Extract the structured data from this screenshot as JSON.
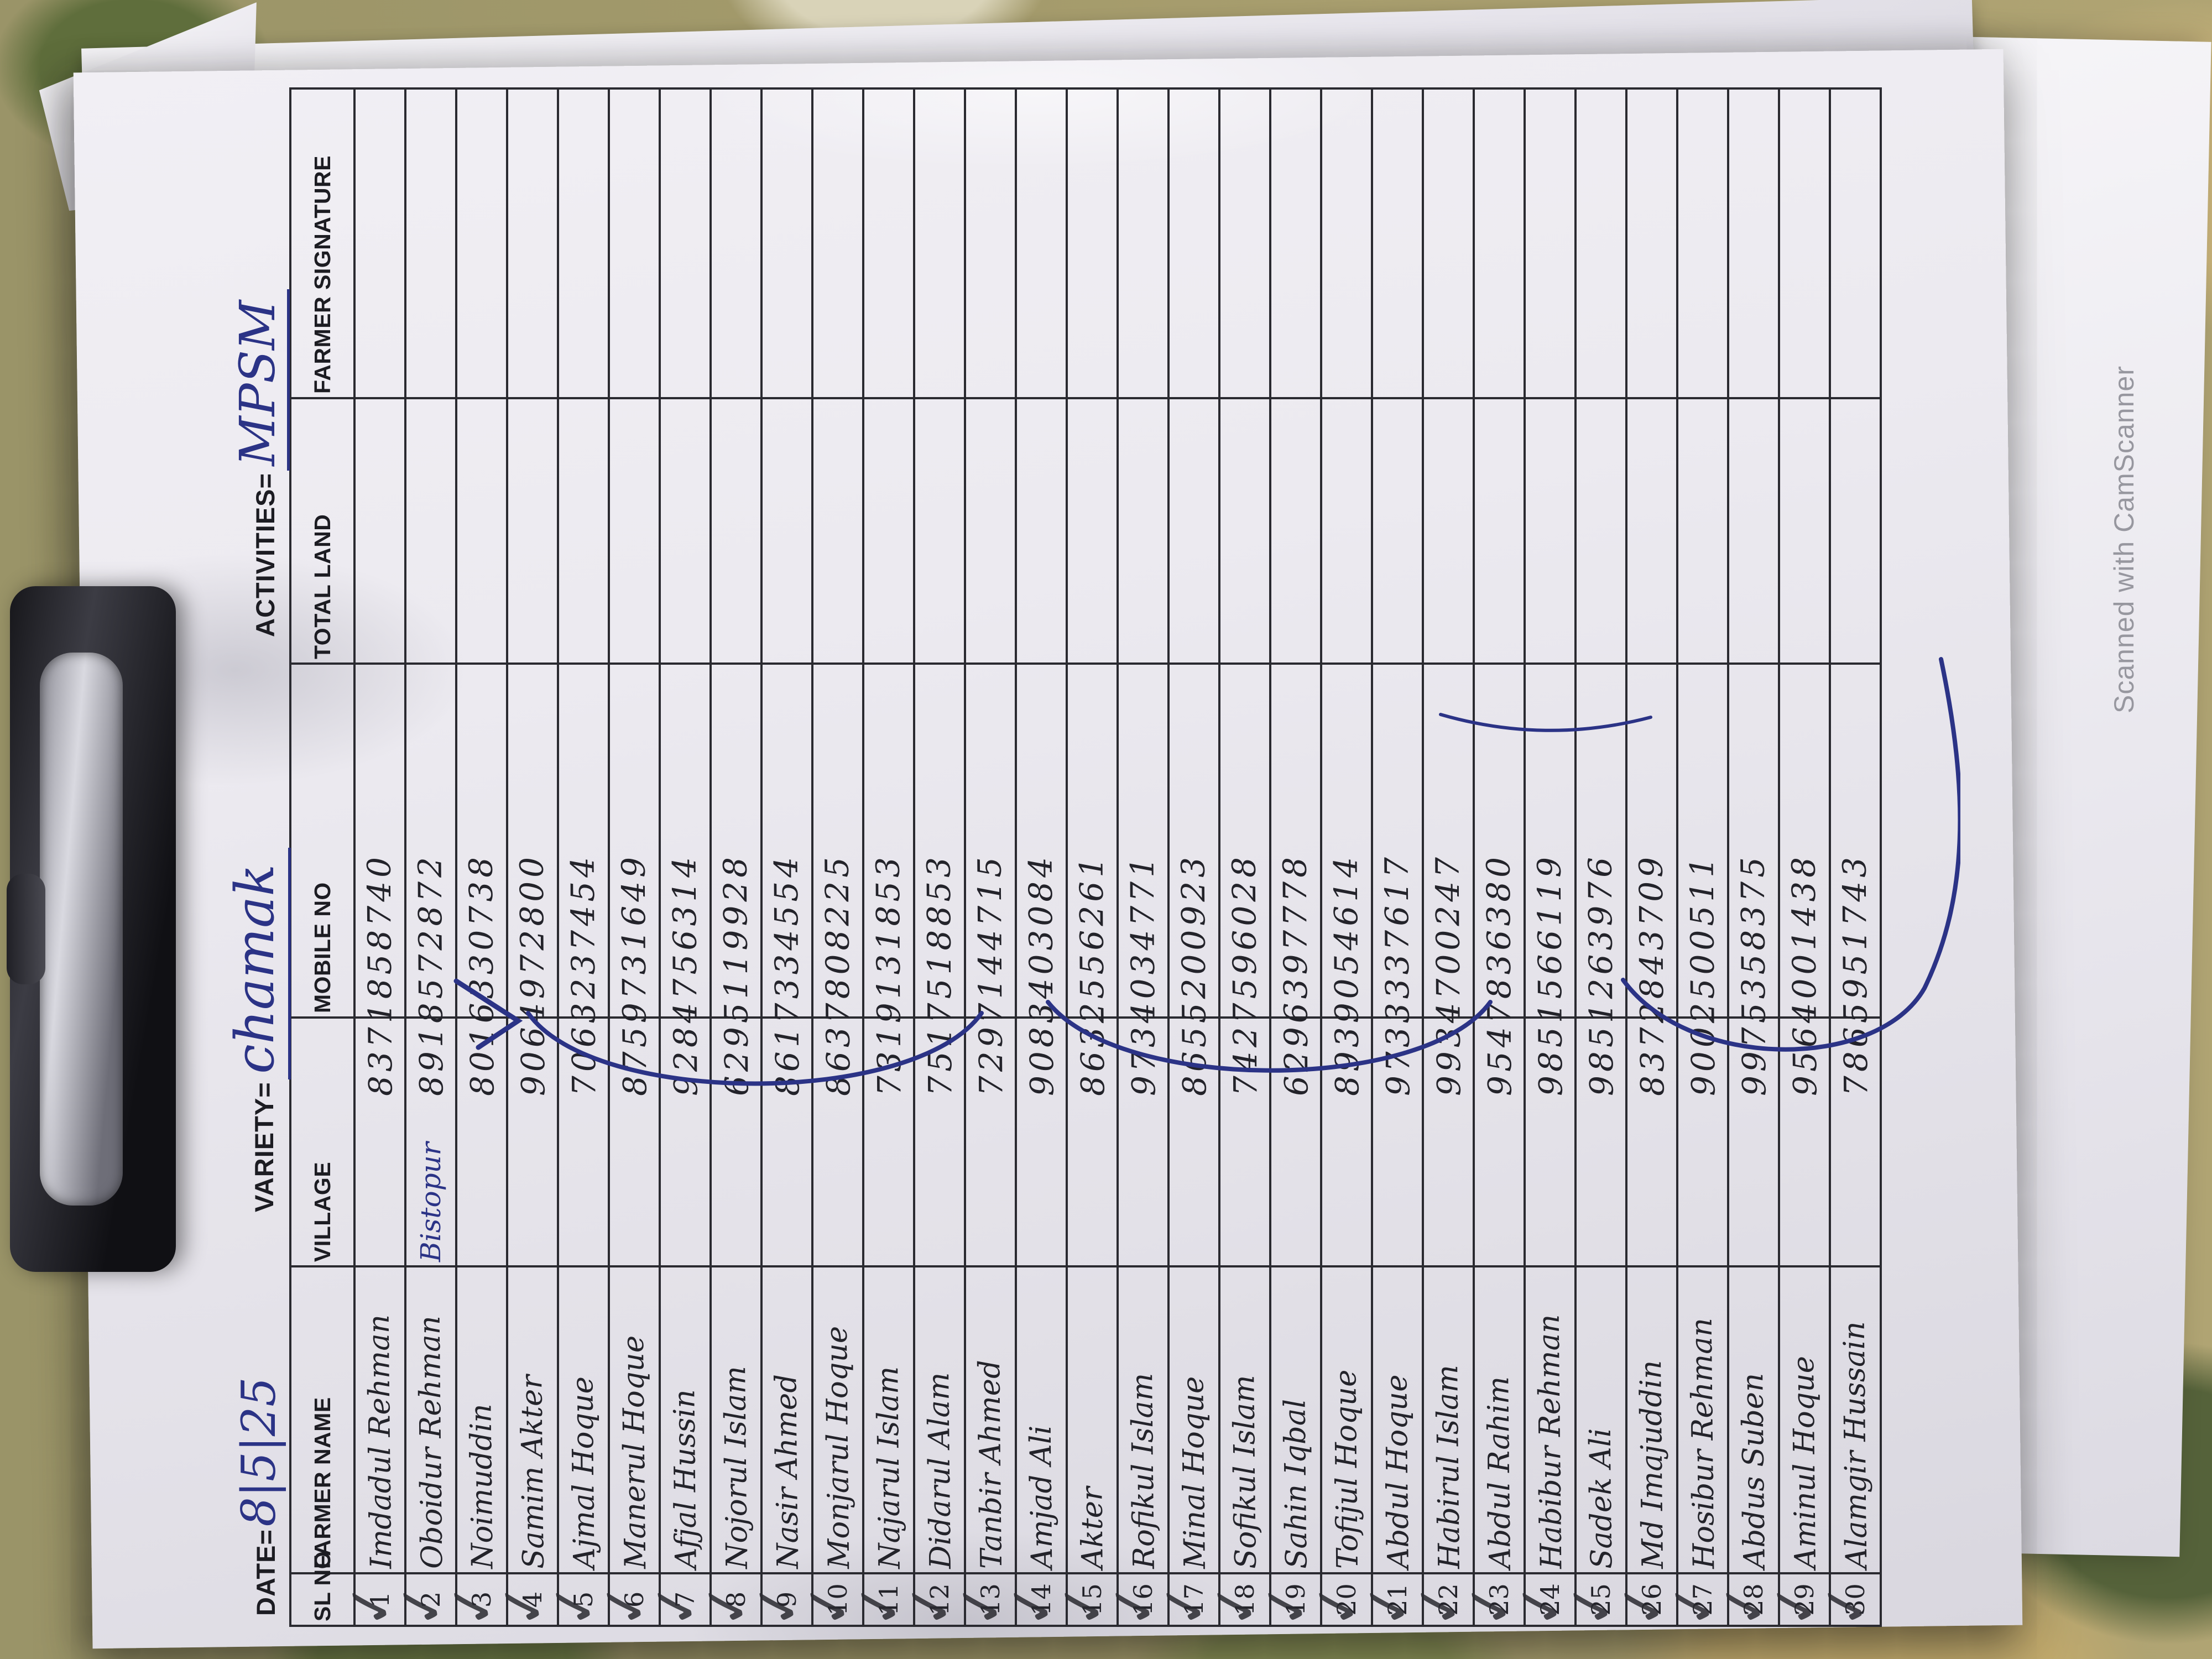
{
  "photo": {
    "watermark": "Scanned with CamScanner"
  },
  "colors": {
    "ink": "#23232a",
    "blue_ink": "#2b3386",
    "paper": "#eceaf0",
    "fabric_olive": "#8a9157"
  },
  "form": {
    "date_label": "DATE=",
    "date_value": "8|5|25",
    "variety_label": "VARIETY=",
    "variety_value": "chamak",
    "activities_label": "ACTIVITIES=",
    "activities_value": "MPSM",
    "columns": [
      "SL NO",
      "FARMER NAME",
      "VILLAGE",
      "MOBILE NO",
      "TOTAL LAND",
      "FARMER SIGNATURE"
    ],
    "rows": [
      {
        "sl": "1",
        "name": "Imdadul Rehman",
        "village": "",
        "mobile": "8371858740",
        "land": "",
        "signature": "",
        "ticked": true
      },
      {
        "sl": "2",
        "name": "Oboidur Rehman",
        "village": "Bistopur",
        "mobile": "8918572872",
        "land": "",
        "signature": "",
        "ticked": true
      },
      {
        "sl": "3",
        "name": "Noimuddin",
        "village": "",
        "mobile": "8016330738",
        "land": "",
        "signature": "",
        "ticked": true
      },
      {
        "sl": "4",
        "name": "Samim Akter",
        "village": "",
        "mobile": "9064972800",
        "land": "",
        "signature": "",
        "ticked": true
      },
      {
        "sl": "5",
        "name": "Ajmal Hoque",
        "village": "",
        "mobile": "7063237454",
        "land": "",
        "signature": "",
        "ticked": true
      },
      {
        "sl": "6",
        "name": "Manerul Hoque",
        "village": "",
        "mobile": "8759731649",
        "land": "",
        "signature": "",
        "ticked": true
      },
      {
        "sl": "7",
        "name": "Afjal Hussin",
        "village": "",
        "mobile": "9284756314",
        "land": "",
        "signature": "",
        "ticked": true
      },
      {
        "sl": "8",
        "name": "Nojorul Islam",
        "village": "",
        "mobile": "6295119928",
        "land": "",
        "signature": "",
        "ticked": true
      },
      {
        "sl": "9",
        "name": "Nasir Ahmed",
        "village": "",
        "mobile": "8617334554",
        "land": "",
        "signature": "",
        "ticked": true
      },
      {
        "sl": "10",
        "name": "Monjarul Hoque",
        "village": "",
        "mobile": "8637808225",
        "land": "",
        "signature": "",
        "ticked": true
      },
      {
        "sl": "11",
        "name": "Najarul Islam",
        "village": "",
        "mobile": "7319131853",
        "land": "",
        "signature": "",
        "ticked": true
      },
      {
        "sl": "12",
        "name": "Didarul Alam",
        "village": "",
        "mobile": "7517518853",
        "land": "",
        "signature": "",
        "ticked": true
      },
      {
        "sl": "13",
        "name": "Tanbir Ahmed",
        "village": "",
        "mobile": "7297144715",
        "land": "",
        "signature": "",
        "ticked": true
      },
      {
        "sl": "14",
        "name": "Amjad Ali",
        "village": "",
        "mobile": "9083403084",
        "land": "",
        "signature": "",
        "ticked": true
      },
      {
        "sl": "15",
        "name": "Akter",
        "village": "",
        "mobile": "8632556261",
        "land": "",
        "signature": "",
        "ticked": true
      },
      {
        "sl": "16",
        "name": "Rofikul Islam",
        "village": "",
        "mobile": "9734034771",
        "land": "",
        "signature": "",
        "ticked": true
      },
      {
        "sl": "17",
        "name": "Minal Hoque",
        "village": "",
        "mobile": "8655200923",
        "land": "",
        "signature": "",
        "ticked": true
      },
      {
        "sl": "18",
        "name": "Sofikul Islam",
        "village": "",
        "mobile": "7427596028",
        "land": "",
        "signature": "",
        "ticked": true
      },
      {
        "sl": "19",
        "name": "Sahin Iqbal",
        "village": "",
        "mobile": "6296397778",
        "land": "",
        "signature": "",
        "ticked": true
      },
      {
        "sl": "20",
        "name": "Tofijul Hoque",
        "village": "",
        "mobile": "8939054614",
        "land": "",
        "signature": "",
        "ticked": true
      },
      {
        "sl": "21",
        "name": "Abdul Hoque",
        "village": "",
        "mobile": "9733337617",
        "land": "",
        "signature": "",
        "ticked": true
      },
      {
        "sl": "22",
        "name": "Habirul Islam",
        "village": "",
        "mobile": "9934700247",
        "land": "",
        "signature": "",
        "ticked": true
      },
      {
        "sl": "23",
        "name": "Abdul Rahim",
        "village": "",
        "mobile": "9547836380",
        "land": "",
        "signature": "",
        "ticked": true
      },
      {
        "sl": "24",
        "name": "Habibur Rehman",
        "village": "",
        "mobile": "9851566119",
        "land": "",
        "signature": "",
        "ticked": true
      },
      {
        "sl": "25",
        "name": "Sadek Ali",
        "village": "",
        "mobile": "9851263976",
        "land": "",
        "signature": "",
        "ticked": true
      },
      {
        "sl": "26",
        "name": "Md Imajuddin",
        "village": "",
        "mobile": "8372843709",
        "land": "",
        "signature": "",
        "ticked": true
      },
      {
        "sl": "27",
        "name": "Hosibur Rehman",
        "village": "",
        "mobile": "9002500511",
        "land": "",
        "signature": "",
        "ticked": true
      },
      {
        "sl": "28",
        "name": "Abdus Suben",
        "village": "",
        "mobile": "9975358375",
        "land": "",
        "signature": "",
        "ticked": true
      },
      {
        "sl": "29",
        "name": "Aminul Hoque",
        "village": "",
        "mobile": "9564001438",
        "land": "",
        "signature": "",
        "ticked": true
      },
      {
        "sl": "30",
        "name": "Alamgir Hussain",
        "village": "",
        "mobile": "7865951743",
        "land": "",
        "signature": "",
        "ticked": true
      }
    ]
  }
}
